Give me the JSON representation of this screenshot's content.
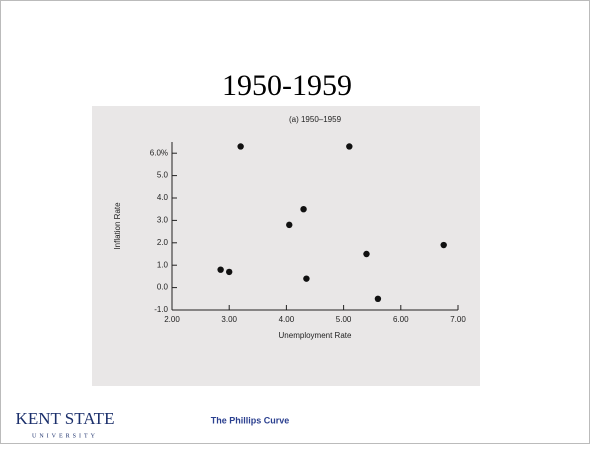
{
  "slide_title": "1950-1959",
  "footer": {
    "logo_main": "KENT STATE",
    "logo_sub": "UNIVERSITY",
    "caption": "The Phillips Curve"
  },
  "chart_data": {
    "type": "scatter",
    "title": "(a) 1950–1959",
    "x_label": "Unemployment Rate",
    "y_label": "Inflation Rate",
    "x": [
      3.2,
      5.1,
      4.3,
      4.05,
      2.85,
      3.0,
      4.35,
      5.4,
      5.6,
      6.75
    ],
    "values": [
      6.3,
      6.3,
      3.5,
      2.8,
      0.8,
      0.7,
      0.4,
      1.5,
      -0.5,
      1.9
    ],
    "color": "#111111",
    "xlim": [
      2,
      7
    ],
    "xticks": [
      {
        "value": 2,
        "label": "2.00"
      },
      {
        "value": 3,
        "label": "3.00"
      },
      {
        "value": 4,
        "label": "4.00"
      },
      {
        "value": 5,
        "label": "5.00"
      },
      {
        "value": 6,
        "label": "6.00"
      },
      {
        "value": 7,
        "label": "7.00"
      }
    ],
    "ylim": [
      -1,
      6.5
    ],
    "yticks": [
      {
        "value": -1,
        "label": "-1.0"
      },
      {
        "value": 0,
        "label": "0.0"
      },
      {
        "value": 1,
        "label": "1.0"
      },
      {
        "value": 2,
        "label": "2.0"
      },
      {
        "value": 3,
        "label": "3.0"
      },
      {
        "value": 4,
        "label": "4.0"
      },
      {
        "value": 5,
        "label": "5.0"
      },
      {
        "value": 6,
        "label": "6.0%"
      }
    ]
  }
}
